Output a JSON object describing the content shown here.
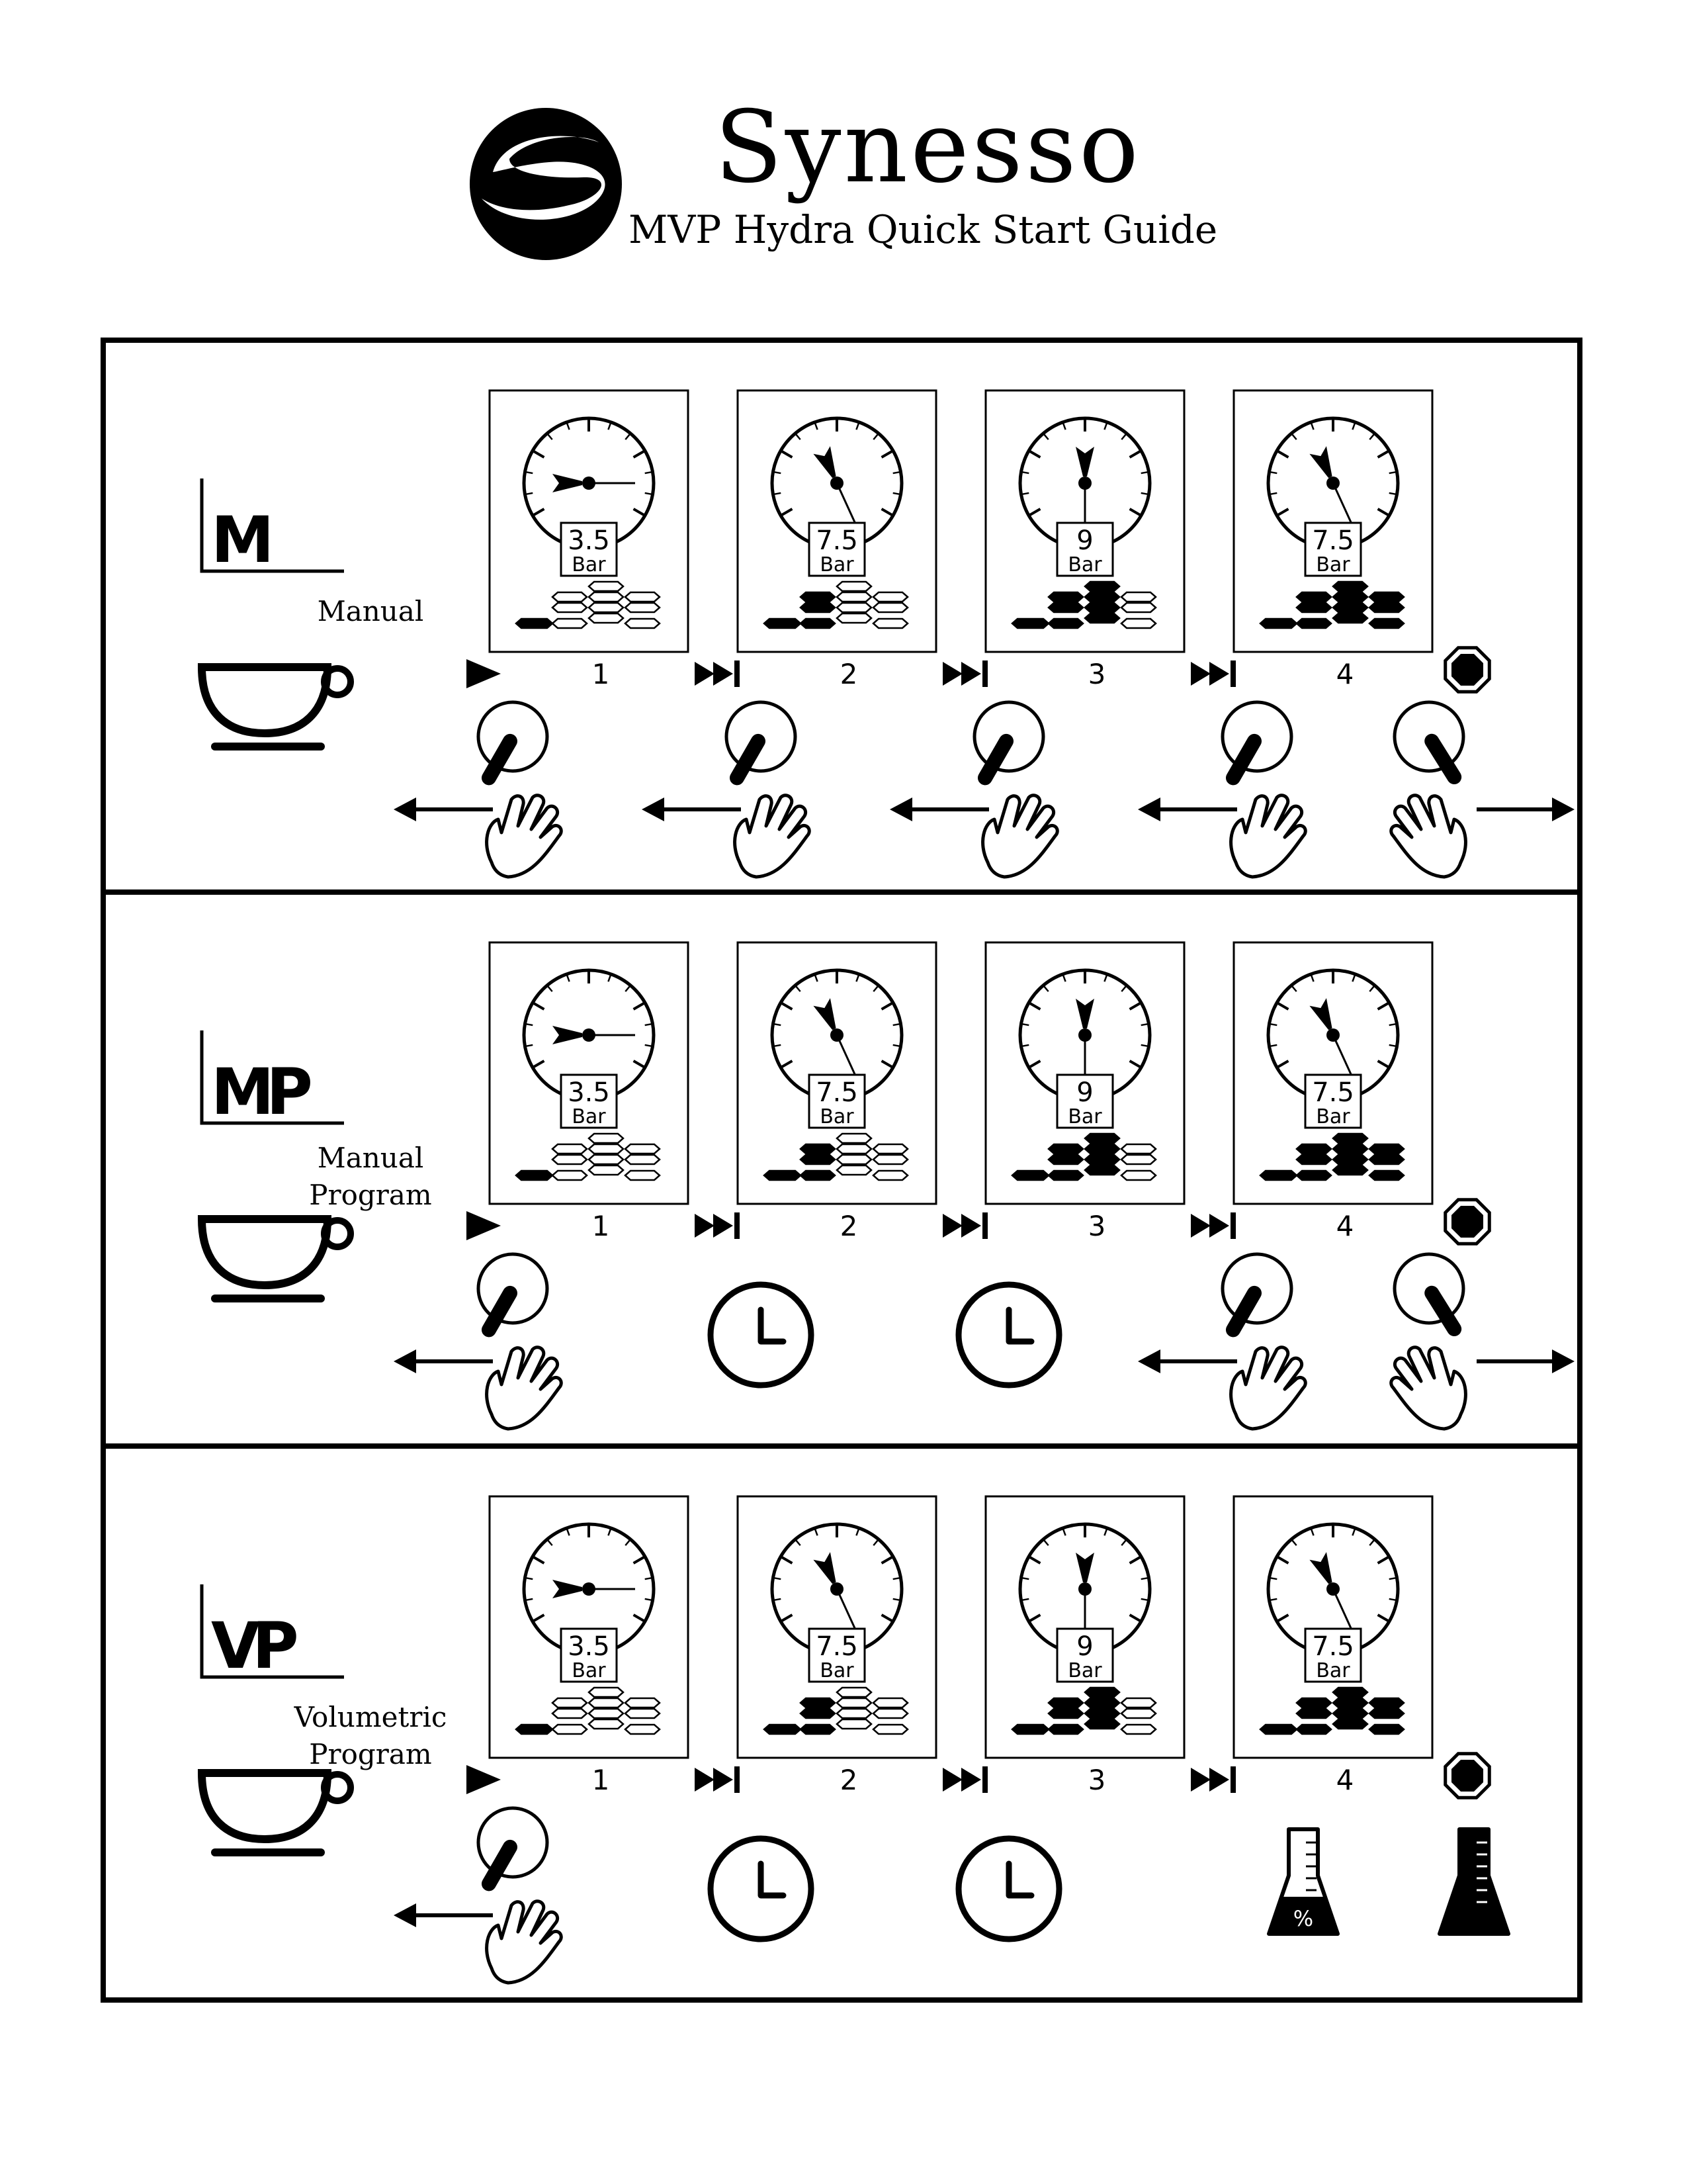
{
  "header": {
    "brand": "Synesso",
    "subtitle": "MVP Hydra Quick Start Guide",
    "logo_icon": "synesso-s-logo-icon"
  },
  "unit": "Bar",
  "stages": [
    "1",
    "2",
    "3",
    "4"
  ],
  "panels": [
    {
      "mode_badge": "M",
      "mode_name": [
        "Manual"
      ],
      "gauges": [
        {
          "pressure": "3.5",
          "pressure_value": 3.5,
          "flow_level": 1
        },
        {
          "pressure": "7.5",
          "pressure_value": 7.5,
          "flow_level": 2
        },
        {
          "pressure": "9",
          "pressure_value": 9,
          "flow_level": 3
        },
        {
          "pressure": "7.5",
          "pressure_value": 7.5,
          "flow_level": 4
        }
      ],
      "actions": [
        "paddle-left-icon",
        "paddle-left-icon",
        "paddle-left-icon",
        "paddle-left-icon",
        "paddle-right-icon"
      ]
    },
    {
      "mode_badge": "MP",
      "mode_name": [
        "Manual",
        "Program"
      ],
      "gauges": [
        {
          "pressure": "3.5",
          "pressure_value": 3.5,
          "flow_level": 1
        },
        {
          "pressure": "7.5",
          "pressure_value": 7.5,
          "flow_level": 2
        },
        {
          "pressure": "9",
          "pressure_value": 9,
          "flow_level": 3
        },
        {
          "pressure": "7.5",
          "pressure_value": 7.5,
          "flow_level": 4
        }
      ],
      "actions": [
        "paddle-left-icon",
        "clock-icon",
        "clock-icon",
        "paddle-left-icon",
        "paddle-right-icon"
      ]
    },
    {
      "mode_badge": "VP",
      "mode_name": [
        "Volumetric",
        "Program"
      ],
      "gauges": [
        {
          "pressure": "3.5",
          "pressure_value": 3.5,
          "flow_level": 1
        },
        {
          "pressure": "7.5",
          "pressure_value": 7.5,
          "flow_level": 2
        },
        {
          "pressure": "9",
          "pressure_value": 9,
          "flow_level": 3
        },
        {
          "pressure": "7.5",
          "pressure_value": 7.5,
          "flow_level": 4
        }
      ],
      "actions": [
        "paddle-left-icon",
        "clock-icon",
        "clock-icon",
        "flask-partial-icon",
        "flask-full-icon"
      ]
    }
  ],
  "icons": {
    "start": "play-icon",
    "next": "skip-next-icon",
    "stop": "stop-octagon-icon",
    "cup": "coffee-cup-icon",
    "gauge": "pressure-gauge-icon",
    "flow": "flow-bars-icon"
  },
  "colors": {
    "ink": "#000000",
    "paper": "#ffffff"
  }
}
